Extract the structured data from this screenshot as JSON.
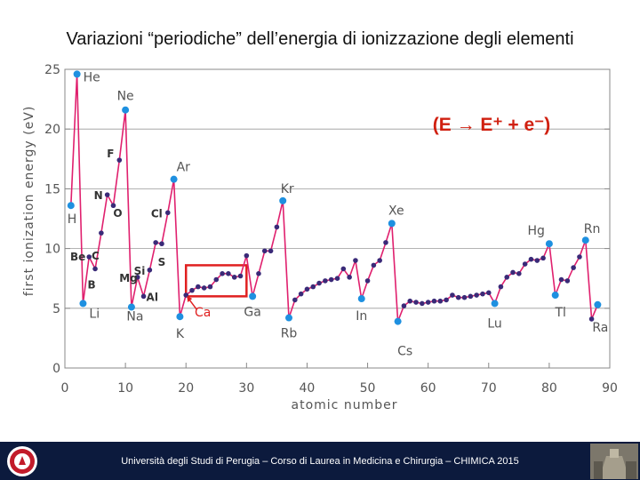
{
  "slide": {
    "title": "Variazioni “periodiche” dell’energia di ionizzazione degli elementi",
    "equation": "(E → E⁺ + e⁻)",
    "footer": "Università degli Studi di Perugia – Corso di Laurea in Medicina e Chirurgia – CHIMICA 2015"
  },
  "colors": {
    "series_line": "#e0206e",
    "marker": "#3a2a78",
    "noble_gas_marker": "#1e90e0",
    "alkali_marker": "#1e90e0",
    "highlight_box": "#e02020",
    "equation": "#d02010",
    "footer_bg": "#0c1a3d"
  },
  "chart_data": {
    "type": "line",
    "xlabel": "atomic number",
    "ylabel": "first ionization energy (eV)",
    "xlim": [
      0,
      90
    ],
    "ylim": [
      0,
      25
    ],
    "xticks": [
      0,
      10,
      20,
      30,
      40,
      50,
      60,
      70,
      80,
      90
    ],
    "yticks": [
      0,
      5,
      10,
      15,
      20,
      25
    ],
    "grid": "horizontal",
    "series": [
      {
        "x": [
          1,
          2,
          3,
          4,
          5,
          6,
          7,
          8,
          9,
          10,
          11,
          12,
          13,
          14,
          15,
          16,
          17,
          18,
          19,
          20,
          21,
          22,
          23,
          24,
          25,
          26,
          27,
          28,
          29,
          30,
          31,
          32,
          33,
          34,
          35,
          36,
          37,
          38,
          39,
          40,
          41,
          42,
          43,
          44,
          45,
          46,
          47,
          48,
          49,
          50,
          51,
          52,
          53,
          54,
          55,
          56,
          57,
          58,
          59,
          60,
          61,
          62,
          63,
          64,
          65,
          66,
          67,
          68,
          69,
          70,
          71,
          72,
          73,
          74,
          75,
          76,
          77,
          78,
          79,
          80,
          81,
          82,
          83,
          84,
          85,
          86,
          87,
          88
        ],
        "y": [
          13.6,
          24.6,
          5.4,
          9.3,
          8.3,
          11.3,
          14.5,
          13.6,
          17.4,
          21.6,
          5.1,
          7.6,
          6.0,
          8.2,
          10.5,
          10.4,
          13.0,
          15.8,
          4.3,
          6.1,
          6.5,
          6.8,
          6.7,
          6.8,
          7.4,
          7.9,
          7.9,
          7.6,
          7.7,
          9.4,
          6.0,
          7.9,
          9.8,
          9.8,
          11.8,
          14.0,
          4.2,
          5.7,
          6.2,
          6.6,
          6.8,
          7.1,
          7.3,
          7.4,
          7.5,
          8.3,
          7.6,
          9.0,
          5.8,
          7.3,
          8.6,
          9.0,
          10.5,
          12.1,
          3.9,
          5.2,
          5.6,
          5.5,
          5.4,
          5.5,
          5.6,
          5.6,
          5.7,
          6.1,
          5.9,
          5.9,
          6.0,
          6.1,
          6.2,
          6.3,
          5.4,
          6.8,
          7.6,
          8.0,
          7.9,
          8.7,
          9.1,
          9.0,
          9.2,
          10.4,
          6.1,
          7.4,
          7.3,
          8.4,
          9.3,
          10.7,
          4.1,
          5.3
        ]
      }
    ],
    "annotations": [
      {
        "label": "He",
        "x": 2,
        "y": 24.6
      },
      {
        "label": "Ne",
        "x": 10,
        "y": 21.6
      },
      {
        "label": "F",
        "x": 9,
        "y": 17.4
      },
      {
        "label": "Ar",
        "x": 18,
        "y": 15.8
      },
      {
        "label": "Kr",
        "x": 36,
        "y": 14.0
      },
      {
        "label": "N",
        "x": 7,
        "y": 14.5
      },
      {
        "label": "H",
        "x": 1,
        "y": 13.6
      },
      {
        "label": "O",
        "x": 8,
        "y": 13.6
      },
      {
        "label": "Cl",
        "x": 17,
        "y": 13.0
      },
      {
        "label": "Xe",
        "x": 54,
        "y": 12.1
      },
      {
        "label": "Rn",
        "x": 86,
        "y": 10.7
      },
      {
        "label": "Hg",
        "x": 80,
        "y": 10.4
      },
      {
        "label": "Si",
        "x": 14,
        "y": 8.2
      },
      {
        "label": "C",
        "x": 6,
        "y": 11.3
      },
      {
        "label": "Be",
        "x": 4,
        "y": 9.3
      },
      {
        "label": "Mg",
        "x": 12,
        "y": 7.6
      },
      {
        "label": "S",
        "x": 16,
        "y": 10.4
      },
      {
        "label": "B",
        "x": 5,
        "y": 8.3
      },
      {
        "label": "Al",
        "x": 13,
        "y": 6.0
      },
      {
        "label": "Li",
        "x": 3,
        "y": 5.4
      },
      {
        "label": "Na",
        "x": 11,
        "y": 5.1
      },
      {
        "label": "K",
        "x": 19,
        "y": 4.3
      },
      {
        "label": "Ca",
        "x": 20,
        "y": 6.1
      },
      {
        "label": "Ga",
        "x": 31,
        "y": 6.0
      },
      {
        "label": "Rb",
        "x": 37,
        "y": 4.2
      },
      {
        "label": "In",
        "x": 49,
        "y": 5.8
      },
      {
        "label": "Cs",
        "x": 55,
        "y": 3.9
      },
      {
        "label": "Lu",
        "x": 71,
        "y": 5.4
      },
      {
        "label": "Tl",
        "x": 81,
        "y": 6.1
      },
      {
        "label": "Ra",
        "x": 88,
        "y": 5.3
      }
    ],
    "highlight_range": {
      "x": [
        20,
        30
      ],
      "y": [
        6.0,
        8.6
      ]
    }
  }
}
